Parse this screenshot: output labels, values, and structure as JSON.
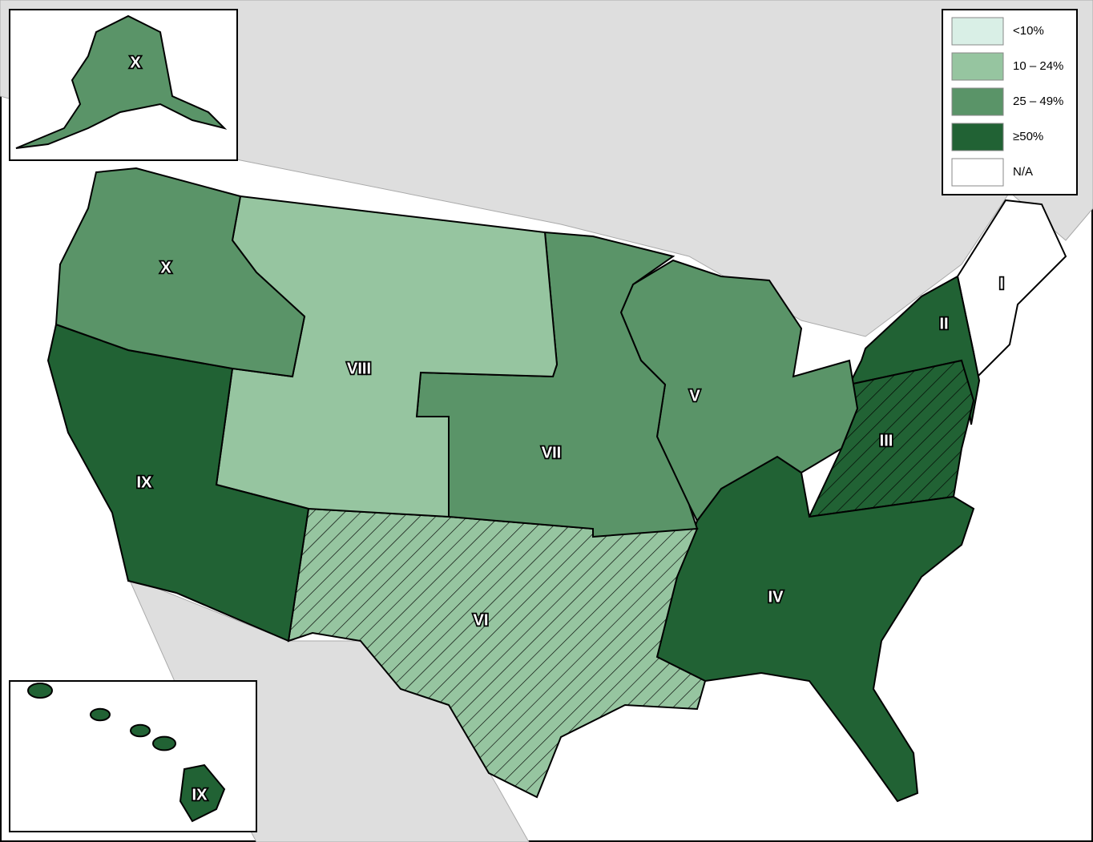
{
  "legend": {
    "items": [
      {
        "label": "<10%",
        "color": "#d9efe6"
      },
      {
        "label": "10 – 24%",
        "color": "#96c5a0"
      },
      {
        "label": "25 – 49%",
        "color": "#5a9468"
      },
      {
        "label": "≥50%",
        "color": "#216234"
      },
      {
        "label": "N/A",
        "color": "#ffffff"
      }
    ]
  },
  "regions": [
    {
      "label": "I",
      "color": "#ffffff",
      "hatched": false
    },
    {
      "label": "II",
      "color": "#216234",
      "hatched": false
    },
    {
      "label": "III",
      "color": "#216234",
      "hatched": true
    },
    {
      "label": "IV",
      "color": "#216234",
      "hatched": false
    },
    {
      "label": "V",
      "color": "#5a9468",
      "hatched": false
    },
    {
      "label": "VI",
      "color": "#96c5a0",
      "hatched": true
    },
    {
      "label": "VII",
      "color": "#5a9468",
      "hatched": false
    },
    {
      "label": "VIII",
      "color": "#96c5a0",
      "hatched": false
    },
    {
      "label": "IX",
      "color": "#216234",
      "hatched": false
    },
    {
      "label": "X",
      "color": "#5a9468",
      "hatched": false
    }
  ],
  "insets": [
    {
      "label": "X",
      "color": "#5a9468"
    },
    {
      "label": "IX",
      "color": "#216234"
    }
  ]
}
